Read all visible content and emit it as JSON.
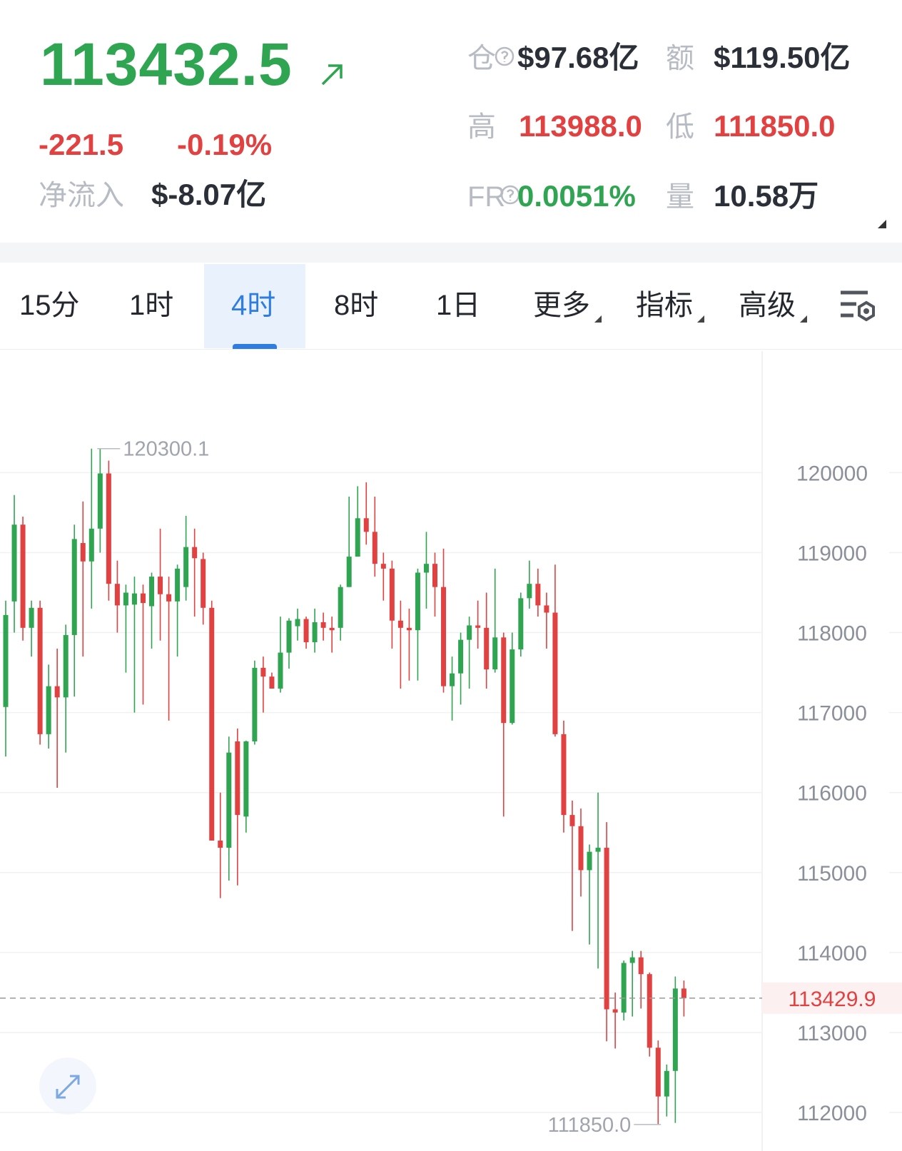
{
  "header": {
    "price": "113432.5",
    "change": "-221.5",
    "change_pct": "-0.19%",
    "netflow_label": "净流入",
    "netflow": "$-8.07亿",
    "oi_label": "仓",
    "oi": "$97.68亿",
    "turnover_label": "额",
    "turnover": "$119.50亿",
    "high_label": "高",
    "high": "113988.0",
    "low_label": "低",
    "low": "111850.0",
    "fr_label": "FR",
    "fr": "0.0051%",
    "volume_label": "量",
    "volume": "10.58万"
  },
  "tabs": [
    "15分",
    "1时",
    "4时",
    "8时",
    "1日",
    "更多",
    "指标",
    "高级"
  ],
  "selected_tab": "4时",
  "chart_data": {
    "type": "candlestick",
    "up_color": "#2fa552",
    "down_color": "#e24141",
    "ylim": [
      111590,
      121520
    ],
    "yticks": [
      112000,
      113000,
      114000,
      115000,
      116000,
      117000,
      118000,
      119000,
      120000
    ],
    "grid": true,
    "last_price": 113429.9,
    "high_annotation": 120300.1,
    "low_annotation": {
      "value": 111850,
      "label": "111850.0"
    },
    "open": [
      117070,
      118390,
      119350,
      118060,
      118310,
      116730,
      117330,
      117190,
      117970,
      119120,
      118890,
      119300,
      119990,
      118610,
      118340,
      118350,
      118490,
      118330,
      118700,
      118480,
      118390,
      118570,
      119070,
      118920,
      118310,
      115400,
      115310,
      116640,
      115700,
      116640,
      117560,
      117450,
      117300,
      117750,
      118080,
      118170,
      117880,
      118130,
      118060,
      118060,
      118570,
      118950,
      119430,
      119260,
      118860,
      118800,
      118150,
      118060,
      118030,
      118750,
      118860,
      118570,
      117330,
      117490,
      117910,
      118090,
      118060,
      117540,
      117940,
      116870,
      117790,
      118430,
      118610,
      118340,
      118250,
      116730,
      115720,
      115580,
      115030,
      115260,
      115310,
      113290,
      113250,
      113870,
      113940,
      113730,
      112810,
      112200,
      112520,
      113550
    ],
    "high": [
      118400,
      119720,
      119450,
      118400,
      118400,
      117600,
      117800,
      118100,
      119350,
      119640,
      120300,
      120300.1,
      120150,
      118900,
      118600,
      118700,
      118600,
      118750,
      119300,
      118700,
      118850,
      119460,
      119300,
      119000,
      118400,
      116000,
      116700,
      116800,
      116650,
      117650,
      117700,
      117500,
      118200,
      118180,
      118300,
      118200,
      118300,
      118250,
      118200,
      118600,
      119700,
      119830,
      119880,
      119700,
      119000,
      118900,
      118400,
      118300,
      118800,
      119260,
      119000,
      119050,
      117700,
      118000,
      118200,
      118400,
      118500,
      118800,
      118000,
      118000,
      118500,
      118900,
      118800,
      118500,
      118850,
      116900,
      115900,
      115800,
      115350,
      116000,
      115630,
      113500,
      113900,
      114020,
      114020,
      113750,
      112900,
      112600,
      113700,
      113650
    ],
    "low": [
      116450,
      118000,
      117900,
      117700,
      116600,
      116550,
      116060,
      116500,
      117200,
      117700,
      118300,
      119000,
      118400,
      118000,
      117500,
      117000,
      117100,
      117800,
      117900,
      116900,
      117700,
      118400,
      118200,
      118100,
      115400,
      114680,
      114900,
      114840,
      115500,
      116600,
      117000,
      117300,
      117250,
      117550,
      117900,
      117800,
      117750,
      117900,
      117750,
      117900,
      118570,
      118950,
      119100,
      118700,
      118400,
      117800,
      117300,
      117400,
      117400,
      118300,
      118200,
      117250,
      116900,
      117100,
      117300,
      117800,
      117300,
      117500,
      115700,
      116850,
      117700,
      118300,
      118200,
      117800,
      116700,
      115500,
      114270,
      114700,
      114100,
      113800,
      112890,
      112800,
      113150,
      113200,
      113300,
      112700,
      111850,
      111950,
      111870,
      113200
    ],
    "close": [
      118220,
      119350,
      118060,
      118310,
      116730,
      117330,
      117190,
      117970,
      119170,
      118890,
      119300,
      119990,
      118610,
      118340,
      118500,
      118490,
      118370,
      118700,
      118480,
      118390,
      118800,
      119070,
      118930,
      118310,
      115400,
      115310,
      116500,
      115720,
      116640,
      117560,
      117450,
      117300,
      117750,
      118150,
      118170,
      117880,
      118130,
      118060,
      118030,
      118570,
      118950,
      119430,
      119260,
      118860,
      118800,
      118150,
      118060,
      118030,
      118750,
      118860,
      118570,
      117330,
      117490,
      117910,
      118090,
      118060,
      117540,
      117940,
      116870,
      117790,
      118430,
      118610,
      118340,
      118250,
      116730,
      115720,
      115580,
      115030,
      115260,
      115310,
      113290,
      113250,
      113870,
      113940,
      113730,
      112810,
      112200,
      112520,
      113550,
      113430
    ]
  }
}
